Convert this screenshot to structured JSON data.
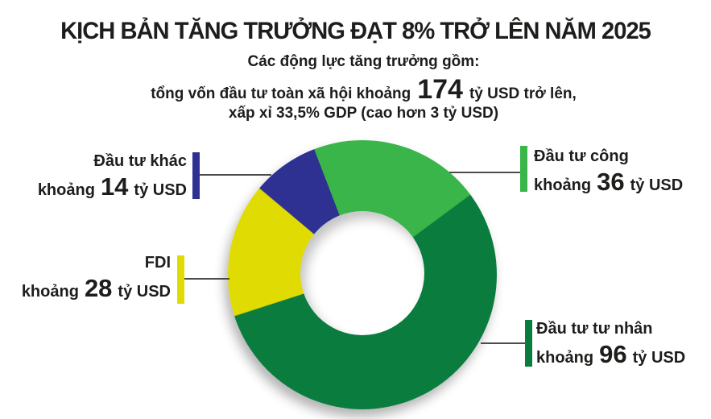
{
  "title": "KỊCH BẢN TĂNG TRƯỞNG ĐẠT 8% TRỞ LÊN NĂM 2025",
  "subtitle": "Các động lực tăng trưởng gồm:",
  "intro": {
    "line1_prefix": "tổng vốn đầu tư toàn xã hội khoảng",
    "total_value": "174",
    "line1_suffix": "tỷ USD trở lên,",
    "line2": "xấp xỉ 33,5% GDP (cao hơn 3 tỷ USD)"
  },
  "colors": {
    "text": "#1d1d1b",
    "connector": "#4b4b4a",
    "background": "#ffffff"
  },
  "chart_data": {
    "type": "pie",
    "subtype": "donut",
    "title": "KỊCH BẢN TĂNG TRƯỞNG ĐẠT 8% TRỞ LÊN NĂM 2025",
    "unit": "tỷ USD",
    "total": 174,
    "start_angle_deg": -21,
    "direction": "clockwise",
    "legend_position": "callout-labels",
    "segments": [
      {
        "label": "Đầu tư công",
        "qualifier": "khoảng",
        "value": 36,
        "unit": "tỷ USD",
        "color": "#39b54a"
      },
      {
        "label": "Đầu tư tư nhân",
        "qualifier": "khoảng",
        "value": 96,
        "unit": "tỷ USD",
        "color": "#0a7c3e"
      },
      {
        "label": "FDI",
        "qualifier": "khoảng",
        "value": 28,
        "unit": "tỷ USD",
        "color": "#e1db04"
      },
      {
        "label": "Đầu tư khác",
        "qualifier": "khoảng",
        "value": 14,
        "unit": "tỷ USD",
        "color": "#2e3192"
      }
    ]
  }
}
